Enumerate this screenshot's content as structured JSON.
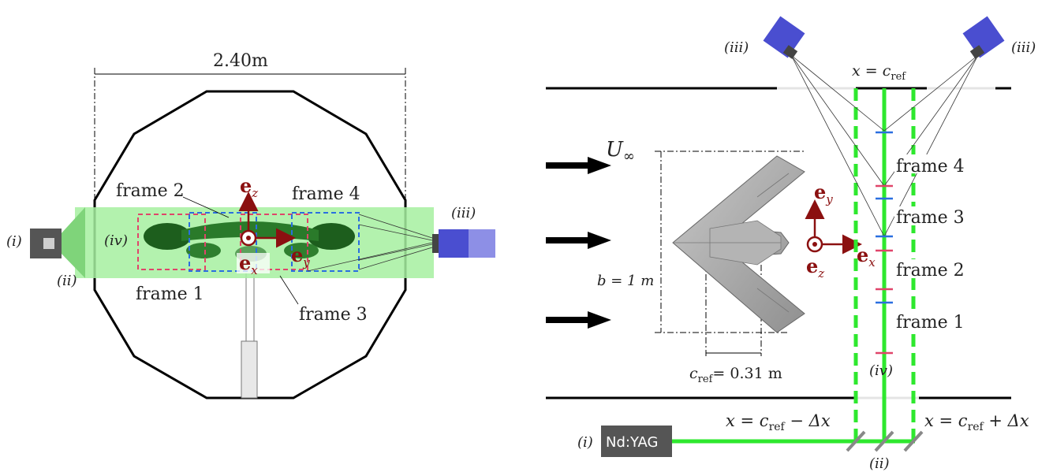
{
  "left": {
    "dimension": "2.40m",
    "laser_label": "(i)",
    "optics_label": "(ii)",
    "camera_label": "(iii)",
    "fov_label": "(iv)",
    "frames": [
      "frame 1",
      "frame 2",
      "frame 3",
      "frame 4"
    ],
    "axes": {
      "ez": "e",
      "ez_sub": "z",
      "ey": "e",
      "ey_sub": "y",
      "ex": "e",
      "ex_sub": "x"
    }
  },
  "right": {
    "freestream": "U",
    "freestream_sub": "∞",
    "camera_label": "(iii)",
    "plane_top": "x = c",
    "plane_top_sub": "ref",
    "span_label": "b = 1 m",
    "chord_label": "= 0.31 m",
    "chord_prefix": "c",
    "chord_sub": "ref",
    "frames": [
      "frame 4",
      "frame 3",
      "frame 2",
      "frame 1"
    ],
    "fov_label": "(iv)",
    "optics_label": "(ii)",
    "laser_index": "(i)",
    "laser_name": "Nd:YAG",
    "plane_minus": "x = c",
    "plane_minus_tail": " − Δx",
    "plane_plus": "x = c",
    "plane_plus_tail": " + Δx",
    "plane_sub": "ref",
    "axes": {
      "ey": "e",
      "ey_sub": "y",
      "ex": "e",
      "ex_sub": "x",
      "ez": "e",
      "ez_sub": "z"
    }
  },
  "colors": {
    "laser_green": "#2ee82e",
    "light_sheet": "#a6f0a0",
    "frame_red": "#e0456a",
    "frame_blue": "#2a6fe0",
    "camera_blue": "#4a4ed0",
    "vector_red": "#8b1010"
  }
}
